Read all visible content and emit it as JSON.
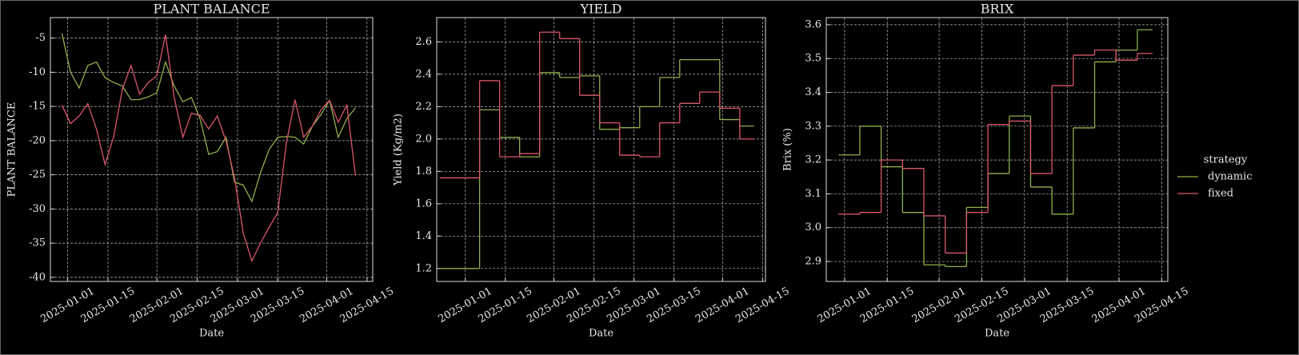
{
  "chart_data": [
    {
      "type": "line",
      "title": "PLANT BALANCE",
      "xlabel": "Date",
      "ylabel": "PLANT BALANCE",
      "x": [
        "2024-12-30",
        "2025-01-02",
        "2025-01-05",
        "2025-01-08",
        "2025-01-11",
        "2025-01-14",
        "2025-01-17",
        "2025-01-20",
        "2025-01-23",
        "2025-01-26",
        "2025-01-29",
        "2025-02-01",
        "2025-02-04",
        "2025-02-07",
        "2025-02-10",
        "2025-02-13",
        "2025-02-16",
        "2025-02-19",
        "2025-02-22",
        "2025-02-25",
        "2025-02-28",
        "2025-03-03",
        "2025-03-06",
        "2025-03-09",
        "2025-03-12",
        "2025-03-15",
        "2025-03-18",
        "2025-03-21",
        "2025-03-24",
        "2025-03-27",
        "2025-03-30",
        "2025-04-02",
        "2025-04-05",
        "2025-04-08",
        "2025-04-11"
      ],
      "series": [
        {
          "name": "dynamic",
          "color": "#8fb04a",
          "values": [
            -4.3,
            -10,
            -12.3,
            -9,
            -8.5,
            -10.8,
            -11.5,
            -12,
            -14,
            -14,
            -13.6,
            -13,
            -8.5,
            -12,
            -14.3,
            -13.7,
            -16.8,
            -22,
            -21.6,
            -19.5,
            -26.1,
            -26.5,
            -28.9,
            -24.7,
            -21.3,
            -19.5,
            -19.4,
            -19.5,
            -20.5,
            -17.9,
            -16.2,
            -14.1,
            -19.5,
            -16.8,
            -15.2
          ]
        },
        {
          "name": "fixed",
          "color": "#d9566b",
          "values": [
            -14.8,
            -17.5,
            -16.4,
            -14.6,
            -18.3,
            -23.5,
            -19.4,
            -12.5,
            -9,
            -13.2,
            -11.5,
            -10.5,
            -4.5,
            -13.6,
            -19.5,
            -16,
            -16.3,
            -18.3,
            -16.4,
            -20,
            -25.5,
            -33.5,
            -37.6,
            -35,
            -32.7,
            -30.5,
            -20.3,
            -14,
            -19.5,
            -17.9,
            -15.5,
            -14.1,
            -17.3,
            -14.8,
            -25.1
          ]
        }
      ],
      "xlim": [
        "2024-12-26",
        "2025-04-17"
      ],
      "xticks": [
        "2025-01-01",
        "2025-01-15",
        "2025-02-01",
        "2025-02-15",
        "2025-03-01",
        "2025-03-15",
        "2025-04-01",
        "2025-04-15"
      ],
      "ylim": [
        -40.6,
        -2
      ],
      "yticks": [
        -40,
        -35,
        -30,
        -25,
        -20,
        -15,
        -10,
        -5
      ],
      "grid": true
    },
    {
      "type": "line",
      "drawstyle": "steps-post",
      "title": "YIELD",
      "xlabel": "Date",
      "ylabel": "Yield (Kg/m2)",
      "x": [
        "2024-12-23",
        "2024-12-30",
        "2025-01-06",
        "2025-01-13",
        "2025-01-20",
        "2025-01-27",
        "2025-02-03",
        "2025-02-10",
        "2025-02-17",
        "2025-02-24",
        "2025-03-03",
        "2025-03-10",
        "2025-03-17",
        "2025-03-24",
        "2025-03-31",
        "2025-04-07",
        "2025-04-12"
      ],
      "series": [
        {
          "name": "dynamic",
          "color": "#8fb04a",
          "values": [
            1.2,
            1.2,
            2.18,
            2.01,
            1.89,
            2.41,
            2.38,
            2.39,
            2.06,
            2.07,
            2.2,
            2.38,
            2.49,
            2.49,
            2.12,
            2.08,
            2.08
          ]
        },
        {
          "name": "fixed",
          "color": "#d9566b",
          "values": [
            1.76,
            1.76,
            2.36,
            1.89,
            1.91,
            2.66,
            2.62,
            2.27,
            2.1,
            1.9,
            1.89,
            2.1,
            2.22,
            2.29,
            2.19,
            2.0,
            2.0
          ]
        }
      ],
      "xlim": [
        "2024-12-22",
        "2025-04-16"
      ],
      "xticks": [
        "2025-01-01",
        "2025-01-15",
        "2025-02-01",
        "2025-02-15",
        "2025-03-01",
        "2025-03-15",
        "2025-04-01",
        "2025-04-15"
      ],
      "ylim": [
        1.12,
        2.75
      ],
      "yticks": [
        1.2,
        1.4,
        1.6,
        1.8,
        {
          "value": 2,
          "label": "2.0"
        },
        2.2,
        2.4,
        2.6
      ],
      "grid": true
    },
    {
      "type": "line",
      "drawstyle": "steps-post",
      "title": "BRIX",
      "xlabel": "Date",
      "ylabel": "Brix (%)",
      "x": [
        "2024-12-30",
        "2025-01-06",
        "2025-01-13",
        "2025-01-20",
        "2025-01-27",
        "2025-02-03",
        "2025-02-10",
        "2025-02-17",
        "2025-02-24",
        "2025-03-03",
        "2025-03-10",
        "2025-03-17",
        "2025-03-24",
        "2025-03-31",
        "2025-04-07",
        "2025-04-12"
      ],
      "series": [
        {
          "name": "dynamic",
          "color": "#8fb04a",
          "values": [
            3.215,
            3.3,
            3.18,
            3.045,
            2.89,
            2.885,
            3.06,
            3.16,
            3.33,
            3.12,
            3.04,
            3.295,
            3.49,
            3.525,
            3.585,
            3.585
          ]
        },
        {
          "name": "fixed",
          "color": "#d9566b",
          "values": [
            3.04,
            3.045,
            3.2,
            3.175,
            3.035,
            2.925,
            3.045,
            3.305,
            3.315,
            3.16,
            3.42,
            3.51,
            3.525,
            3.495,
            3.515,
            3.515
          ]
        }
      ],
      "xlim": [
        "2024-12-26",
        "2025-04-17"
      ],
      "xticks": [
        "2025-01-01",
        "2025-01-15",
        "2025-02-01",
        "2025-02-15",
        "2025-03-01",
        "2025-03-15",
        "2025-04-01",
        "2025-04-15"
      ],
      "ylim": [
        2.841,
        3.621
      ],
      "yticks": [
        2.9,
        {
          "value": 3,
          "label": "3.0"
        },
        3.1,
        3.2,
        3.3,
        3.4,
        3.5,
        3.6
      ],
      "grid": true,
      "legend": {
        "title": "strategy",
        "position": "right"
      }
    }
  ]
}
